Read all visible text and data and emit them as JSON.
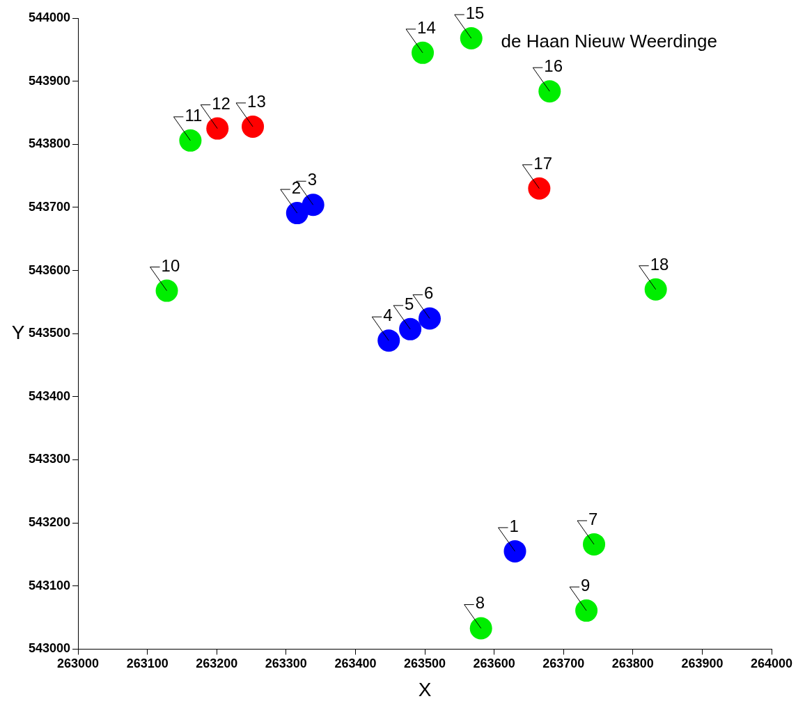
{
  "chart_data": {
    "type": "scatter",
    "title": "de Haan Nieuw Weerdinge",
    "xlabel": "X",
    "ylabel": "Y",
    "xlim": [
      263000,
      264000
    ],
    "xticks": [
      263000,
      263100,
      263200,
      263300,
      263400,
      263500,
      263600,
      263700,
      263800,
      263900,
      264000
    ],
    "ylim": [
      543000,
      544000
    ],
    "yticks": [
      543000,
      543100,
      543200,
      543300,
      543400,
      543500,
      543600,
      543700,
      543800,
      543900,
      544000
    ],
    "grid": false,
    "legend": false,
    "marker": "circle",
    "series": [
      {
        "color": "#0000ff",
        "x": [
          263630,
          263316,
          263339,
          263448,
          263479,
          263507
        ],
        "values": [
          543155,
          543691,
          543704,
          543489,
          543507,
          543524
        ]
      },
      {
        "color": "#00ee00",
        "x": [
          263744,
          263581,
          263733,
          263128,
          263162,
          263497,
          263567,
          263680,
          263833
        ],
        "values": [
          543166,
          543033,
          543061,
          543568,
          543806,
          543945,
          543968,
          543884,
          543570
        ]
      },
      {
        "color": "#ff0000",
        "x": [
          263201,
          263252,
          263665
        ],
        "values": [
          543825,
          543828,
          543730
        ]
      }
    ],
    "annotations": [
      {
        "text": "1",
        "x": 263630,
        "y": 543155
      },
      {
        "text": "2",
        "x": 263316,
        "y": 543691
      },
      {
        "text": "3",
        "x": 263339,
        "y": 543704
      },
      {
        "text": "4",
        "x": 263448,
        "y": 543489
      },
      {
        "text": "5",
        "x": 263479,
        "y": 543507
      },
      {
        "text": "6",
        "x": 263507,
        "y": 543524
      },
      {
        "text": "7",
        "x": 263744,
        "y": 543166
      },
      {
        "text": "8",
        "x": 263581,
        "y": 543033
      },
      {
        "text": "9",
        "x": 263733,
        "y": 543061
      },
      {
        "text": "10",
        "x": 263128,
        "y": 543568
      },
      {
        "text": "11",
        "x": 263162,
        "y": 543806
      },
      {
        "text": "12",
        "x": 263201,
        "y": 543825
      },
      {
        "text": "13",
        "x": 263252,
        "y": 543828
      },
      {
        "text": "14",
        "x": 263497,
        "y": 543945
      },
      {
        "text": "15",
        "x": 263567,
        "y": 543968
      },
      {
        "text": "16",
        "x": 263680,
        "y": 543884
      },
      {
        "text": "17",
        "x": 263665,
        "y": 543730
      },
      {
        "text": "18",
        "x": 263833,
        "y": 543570
      }
    ]
  }
}
